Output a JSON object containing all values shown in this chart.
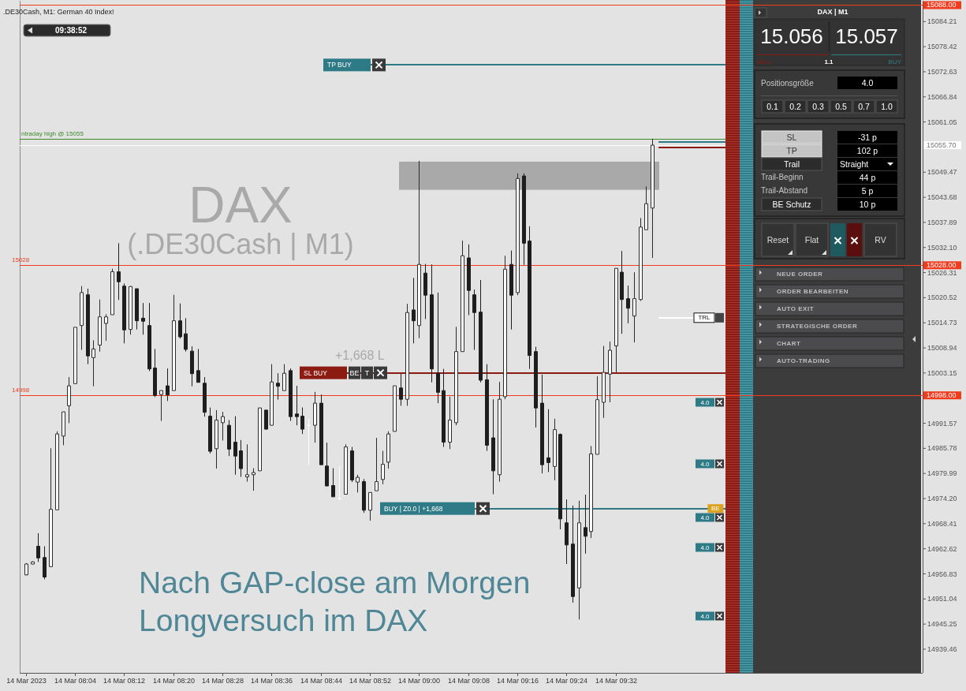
{
  "chart_data": [
    {
      "type": "candlestick",
      "title": ".DE30Cash, M1: German 40 Index!",
      "x": [
        "2023-03-14T07:56",
        "2023-03-14T07:57",
        "2023-03-14T07:58",
        "2023-03-14T07:59",
        "2023-03-14T08:00",
        "2023-03-14T08:01",
        "2023-03-14T08:02",
        "2023-03-14T08:03",
        "2023-03-14T08:04",
        "2023-03-14T08:05",
        "2023-03-14T08:06",
        "2023-03-14T08:07",
        "2023-03-14T08:08",
        "2023-03-14T08:09",
        "2023-03-14T08:10",
        "2023-03-14T08:11",
        "2023-03-14T08:12",
        "2023-03-14T08:13",
        "2023-03-14T08:14",
        "2023-03-14T08:15",
        "2023-03-14T08:16",
        "2023-03-14T08:17",
        "2023-03-14T08:18",
        "2023-03-14T08:19",
        "2023-03-14T08:20",
        "2023-03-14T08:21",
        "2023-03-14T08:22",
        "2023-03-14T08:23",
        "2023-03-14T08:24",
        "2023-03-14T08:25",
        "2023-03-14T08:26",
        "2023-03-14T08:27",
        "2023-03-14T08:28",
        "2023-03-14T08:29",
        "2023-03-14T08:30",
        "2023-03-14T08:31",
        "2023-03-14T08:32",
        "2023-03-14T08:33",
        "2023-03-14T08:34",
        "2023-03-14T08:35",
        "2023-03-14T08:36",
        "2023-03-14T08:37",
        "2023-03-14T08:38",
        "2023-03-14T08:39",
        "2023-03-14T08:40",
        "2023-03-14T08:41",
        "2023-03-14T08:42",
        "2023-03-14T08:43",
        "2023-03-14T08:44",
        "2023-03-14T08:45",
        "2023-03-14T08:46",
        "2023-03-14T08:47",
        "2023-03-14T08:48",
        "2023-03-14T08:49",
        "2023-03-14T08:50",
        "2023-03-14T08:51",
        "2023-03-14T08:52",
        "2023-03-14T08:53",
        "2023-03-14T08:54",
        "2023-03-14T08:55",
        "2023-03-14T08:56",
        "2023-03-14T08:57",
        "2023-03-14T08:58",
        "2023-03-14T08:59",
        "2023-03-14T09:00",
        "2023-03-14T09:01",
        "2023-03-14T09:02",
        "2023-03-14T09:03",
        "2023-03-14T09:04",
        "2023-03-14T09:05",
        "2023-03-14T09:06",
        "2023-03-14T09:07",
        "2023-03-14T09:08",
        "2023-03-14T09:09",
        "2023-03-14T09:10",
        "2023-03-14T09:11",
        "2023-03-14T09:12",
        "2023-03-14T09:13",
        "2023-03-14T09:14",
        "2023-03-14T09:15",
        "2023-03-14T09:16",
        "2023-03-14T09:17",
        "2023-03-14T09:18",
        "2023-03-14T09:19",
        "2023-03-14T09:20",
        "2023-03-14T09:21",
        "2023-03-14T09:22",
        "2023-03-14T09:23",
        "2023-03-14T09:24",
        "2023-03-14T09:25",
        "2023-03-14T09:26",
        "2023-03-14T09:27",
        "2023-03-14T09:28",
        "2023-03-14T09:29",
        "2023-03-14T09:30",
        "2023-03-14T09:31",
        "2023-03-14T09:32",
        "2023-03-14T09:33",
        "2023-03-14T09:34",
        "2023-03-14T09:35",
        "2023-03-14T09:36",
        "2023-03-14T09:37",
        "2023-03-14T09:38"
      ],
      "ohlc": [
        [
          14956.6,
          14959.3,
          14956.5,
          14959.1
        ],
        [
          14959.1,
          14959.7,
          14959.0,
          14959.6
        ],
        [
          14963.2,
          14966.2,
          14959.6,
          14960.5
        ],
        [
          14960.6,
          14963.2,
          14955.6,
          14956.1
        ],
        [
          14958.5,
          14985.8,
          14958.4,
          14971.7
        ],
        [
          14971.6,
          14989.7,
          14971.6,
          14989.1
        ],
        [
          14988.6,
          14994.2,
          14986.5,
          14994.2
        ],
        [
          14995.6,
          15002.2,
          14991.6,
          15000.2
        ],
        [
          15000.7,
          15013.7,
          15000.7,
          15013.7
        ],
        [
          15014.1,
          15023.2,
          15008.5,
          15021.7
        ],
        [
          15021.2,
          15022.6,
          15005.2,
          15007.1
        ],
        [
          15006.7,
          15010.7,
          15000.1,
          15008.7
        ],
        [
          15009.6,
          15020.1,
          15008.1,
          15016.1
        ],
        [
          15014.6,
          15016.7,
          15010.6,
          15016.1
        ],
        [
          15016.6,
          15027.2,
          15016.6,
          15026.5
        ],
        [
          15026.5,
          15033.1,
          15020.0,
          15024.2
        ],
        [
          15023.2,
          15023.8,
          15010.0,
          15013.1
        ],
        [
          15013.2,
          15023.2,
          15012.0,
          15023.1
        ],
        [
          15022.6,
          15022.6,
          15013.2,
          15015.2
        ],
        [
          15015.8,
          15019.3,
          15012.0,
          15015.1
        ],
        [
          15014.1,
          15019.3,
          15003.6,
          15004.1
        ],
        [
          15004.3,
          15008.7,
          14997.6,
          14998.0
        ],
        [
          14998.2,
          14999.1,
          14992.1,
          14999.1
        ],
        [
          15000.2,
          15004.2,
          14996.7,
          14998.1
        ],
        [
          14999.1,
          15021.2,
          14999.1,
          15015.2
        ],
        [
          15015.2,
          15019.2,
          15011.1,
          15011.5
        ],
        [
          15012.2,
          15015.8,
          15008.1,
          15008.6
        ],
        [
          15008.2,
          15009.3,
          15000.1,
          15003.0
        ],
        [
          15003.7,
          15008.7,
          15001.0,
          15001.0
        ],
        [
          15000.8,
          15002.2,
          14993.1,
          14994.1
        ],
        [
          14993.2,
          14995.2,
          14984.6,
          14985.1
        ],
        [
          14985.7,
          14994.6,
          14981.1,
          14992.3
        ],
        [
          14991.7,
          14994.2,
          14987.6,
          14993.1
        ],
        [
          14991.1,
          14992.3,
          14984.0,
          14985.6
        ],
        [
          14987.2,
          14993.2,
          14979.7,
          14984.0
        ],
        [
          14985.2,
          14987.7,
          14979.2,
          14981.1
        ],
        [
          14979.2,
          14986.7,
          14978.1,
          14979.7
        ],
        [
          14979.7,
          14981.2,
          14976.0,
          14980.2
        ],
        [
          14980.6,
          14995.1,
          14980.6,
          14995.1
        ],
        [
          14994.6,
          14994.6,
          14990.2,
          14990.2
        ],
        [
          14991.1,
          15005.2,
          14991.1,
          15001.1
        ],
        [
          15000.8,
          15003.1,
          14997.0,
          15000.1
        ],
        [
          14999.1,
          15005.2,
          14999.1,
          15003.1
        ],
        [
          15003.7,
          15004.2,
          14992.1,
          14993.1
        ],
        [
          14993.7,
          15000.2,
          14991.1,
          14993.1
        ],
        [
          14993.2,
          14995.2,
          14989.1,
          14990.2
        ],
        [
          14991.1,
          14992.6,
          14982.0,
          14991.1
        ],
        [
          14991.1,
          14998.8,
          14987.1,
          14996.2
        ],
        [
          14996.2,
          14998.2,
          14982.0,
          14982.0
        ],
        [
          14981.7,
          14987.1,
          14977.1,
          14977.1
        ],
        [
          14977.2,
          14981.2,
          14974.6,
          14974.6
        ],
        [
          14974.2,
          14981.7,
          14973.9,
          14974.2
        ],
        [
          14975.2,
          14986.7,
          14975.2,
          14986.1
        ],
        [
          14985.2,
          14986.1,
          14978.0,
          14978.5
        ],
        [
          14978.0,
          14979.7,
          14975.6,
          14979.1
        ],
        [
          14978.1,
          14978.7,
          14970.9,
          14971.5
        ],
        [
          14971.5,
          14975.6,
          14969.1,
          14975.6
        ],
        [
          14976.0,
          14988.2,
          14976.0,
          14978.1
        ],
        [
          14978.6,
          14985.2,
          14977.5,
          14982.1
        ],
        [
          14982.6,
          14989.7,
          14981.1,
          14989.1
        ],
        [
          14989.7,
          15000.2,
          14989.7,
          15000.2
        ],
        [
          14999.7,
          15003.0,
          14995.6,
          14997.1
        ],
        [
          14997.1,
          15019.1,
          14995.6,
          15017.1
        ],
        [
          15017.7,
          15025.1,
          15010.0,
          15015.2
        ],
        [
          15014.1,
          15052.1,
          15011.2,
          15028.2
        ],
        [
          15026.2,
          15028.3,
          15015.6,
          15021.1
        ],
        [
          15021.2,
          15028.2,
          15001.0,
          15004.1
        ],
        [
          15003.1,
          15021.7,
          14996.2,
          14998.7
        ],
        [
          14999.1,
          15004.1,
          14986.1,
          14987.2
        ],
        [
          14987.2,
          14997.7,
          14985.6,
          14992.3
        ],
        [
          14991.7,
          15013.8,
          14991.1,
          15008.1
        ],
        [
          15008.1,
          15033.7,
          15008.1,
          15030.2
        ],
        [
          15029.7,
          15032.8,
          15016.5,
          15022.2
        ],
        [
          15021.2,
          15022.4,
          15008.5,
          15017.1
        ],
        [
          15017.2,
          15024.6,
          15001.0,
          15001.5
        ],
        [
          15001.6,
          15005.2,
          14985.2,
          14986.5
        ],
        [
          14988.2,
          14997.1,
          14975.2,
          14980.6
        ],
        [
          14979.7,
          15001.1,
          14978.1,
          14997.1
        ],
        [
          14997.7,
          15030.2,
          14997.1,
          15027.1
        ],
        [
          15028.2,
          15031.4,
          15013.2,
          15021.1
        ],
        [
          15021.7,
          15049.2,
          15021.1,
          15048.0
        ],
        [
          15048.6,
          15049.2,
          15028.1,
          15033.1
        ],
        [
          15033.6,
          15037.0,
          15004.1,
          15007.2
        ],
        [
          15008.1,
          15009.2,
          14990.6,
          14995.1
        ],
        [
          14996.2,
          15002.8,
          14980.0,
          14982.0
        ],
        [
          14983.6,
          14994.8,
          14980.3,
          14982.5
        ],
        [
          14981.6,
          14992.6,
          14978.4,
          14990.1
        ],
        [
          14989.0,
          14989.2,
          14967.1,
          14969.5
        ],
        [
          14968.6,
          14974.0,
          14959.1,
          14963.5
        ],
        [
          14963.7,
          14972.6,
          14950.2,
          14951.6
        ],
        [
          14953.6,
          14973.7,
          14946.3,
          14968.6
        ],
        [
          14967.5,
          14975.1,
          14961.5,
          14965.5
        ],
        [
          14966.6,
          14986.3,
          14965.1,
          14984.5
        ],
        [
          14984.4,
          15002.4,
          14984.4,
          14997.0
        ],
        [
          14996.4,
          15009.4,
          14992.8,
          15003.3
        ],
        [
          15002.9,
          15010.4,
          14996.4,
          15008.4
        ],
        [
          15009.4,
          15027.3,
          15003.3,
          15027.3
        ],
        [
          15026.4,
          15031.3,
          15012.2,
          15020.1
        ],
        [
          15020.3,
          15023.3,
          15014.6,
          15018.1
        ],
        [
          15016.3,
          15026.4,
          15010.2,
          15020.3
        ],
        [
          15020.1,
          15038.9,
          15019.8,
          15036.8
        ],
        [
          15036.2,
          15046.2,
          15036.2,
          15042.2
        ],
        [
          15041.2,
          15057.2,
          15029.7,
          15055.7
        ]
      ],
      "xlim": [
        "2023-03-14T07:55",
        "2023-03-14T10:22"
      ],
      "xticks": [
        {
          "value": "2023-03-14T07:56",
          "label": "14 Mar 2023"
        },
        {
          "value": "2023-03-14T08:04",
          "label": "14 Mar 08:04"
        },
        {
          "value": "2023-03-14T08:12",
          "label": "14 Mar 08:12"
        },
        {
          "value": "2023-03-14T08:20",
          "label": "14 Mar 08:20"
        },
        {
          "value": "2023-03-14T08:28",
          "label": "14 Mar 08:28"
        },
        {
          "value": "2023-03-14T08:36",
          "label": "14 Mar 08:36"
        },
        {
          "value": "2023-03-14T08:44",
          "label": "14 Mar 08:44"
        },
        {
          "value": "2023-03-14T08:52",
          "label": "14 Mar 08:52"
        },
        {
          "value": "2023-03-14T09:00",
          "label": "14 Mar 09:00"
        },
        {
          "value": "2023-03-14T09:08",
          "label": "14 Mar 09:08"
        },
        {
          "value": "2023-03-14T09:16",
          "label": "14 Mar 09:16"
        },
        {
          "value": "2023-03-14T09:24",
          "label": "14 Mar 09:24"
        },
        {
          "value": "2023-03-14T09:32",
          "label": "14 Mar 09:32"
        }
      ],
      "ylim": [
        14934,
        15089
      ],
      "yticks": [
        {
          "value": 15088,
          "label": "15088.00"
        },
        15084.21,
        15078.42,
        15072.63,
        15066.84,
        15061.05,
        {
          "value": 15055.7,
          "label": "15055.70"
        },
        15049.47,
        15043.68,
        15037.89,
        {
          "value": 15032.1,
          "label": "15032.10"
        },
        {
          "value": 15028,
          "label": "15028.00"
        },
        15026.31,
        15020.52,
        15014.73,
        15008.94,
        15003.15,
        {
          "value": 14998,
          "label": "14998.00"
        },
        14991.57,
        14985.78,
        14979.99,
        {
          "value": 14974.2,
          "label": "14974.20"
        },
        14968.41,
        14962.62,
        14956.83,
        14951.04,
        14945.25,
        14939.46
      ],
      "ref_lines": [
        {
          "axis": "y",
          "value": 15088,
          "color": "#f23a1c"
        },
        {
          "axis": "y",
          "value": 15074.2,
          "label": "TP BUY",
          "color": "#2e7b87"
        },
        {
          "axis": "y",
          "value": 15057.1,
          "label": "ntraday high @ 15055",
          "color": "#3c8a28"
        },
        {
          "axis": "y",
          "value": 15055.7,
          "color": "#ffffff"
        },
        {
          "axis": "y",
          "value": 15028,
          "label": "15028",
          "color": "#f23a1c"
        },
        {
          "axis": "y",
          "value": 15015.9,
          "label": "TRL",
          "color": "#ffffff"
        },
        {
          "axis": "y",
          "value": 15003.2,
          "label": "SL BUY",
          "color": "#8c1b12"
        },
        {
          "axis": "y",
          "value": 14998,
          "label": "14998",
          "color": "#f23a1c"
        },
        {
          "axis": "y",
          "value": 14971.9,
          "label": "BUY | Z0.0 | +1,668",
          "color": "#2e7b87"
        }
      ],
      "bands": [
        {
          "axis": "y",
          "from": 15045.4,
          "to": 15051.9,
          "color": "#a9a9a9"
        }
      ],
      "annotations": [
        "DAX",
        "(.DE30Cash | M1)",
        "+1,668 L",
        "09:38:52",
        "Nach GAP-close am Morgen",
        "Longversuch im DAX",
        "BE",
        "T",
        {
          "text": "BE",
          "x": "2023-03-14T09:47",
          "y": 14971.9
        },
        "4.0",
        "4.0",
        "4.0",
        "4.0",
        "4.0"
      ]
    },
    {
      "type": "other",
      "annotations": [
        "DAX | M1",
        "15.056",
        "15.057",
        "SELL",
        "1.1",
        "BUY",
        "Positionsgröße",
        "4.0",
        "0.1",
        "0.2",
        "0.3",
        "0.5",
        "0.7",
        "1.0",
        "SL",
        "-31 p",
        "TP",
        "102 p",
        "Trail",
        "Straight",
        "Trail-Beginn",
        "44 p",
        "Trail-Abstand",
        "5 p",
        "BE Schutz",
        "10 p",
        "Reset",
        "Flat",
        "RV",
        "NEUE ORDER",
        "ORDER BEARBEITEN",
        "AUTO EXIT",
        "STRATEGISCHE ORDER",
        "CHART",
        "AUTO-TRADING"
      ]
    }
  ]
}
